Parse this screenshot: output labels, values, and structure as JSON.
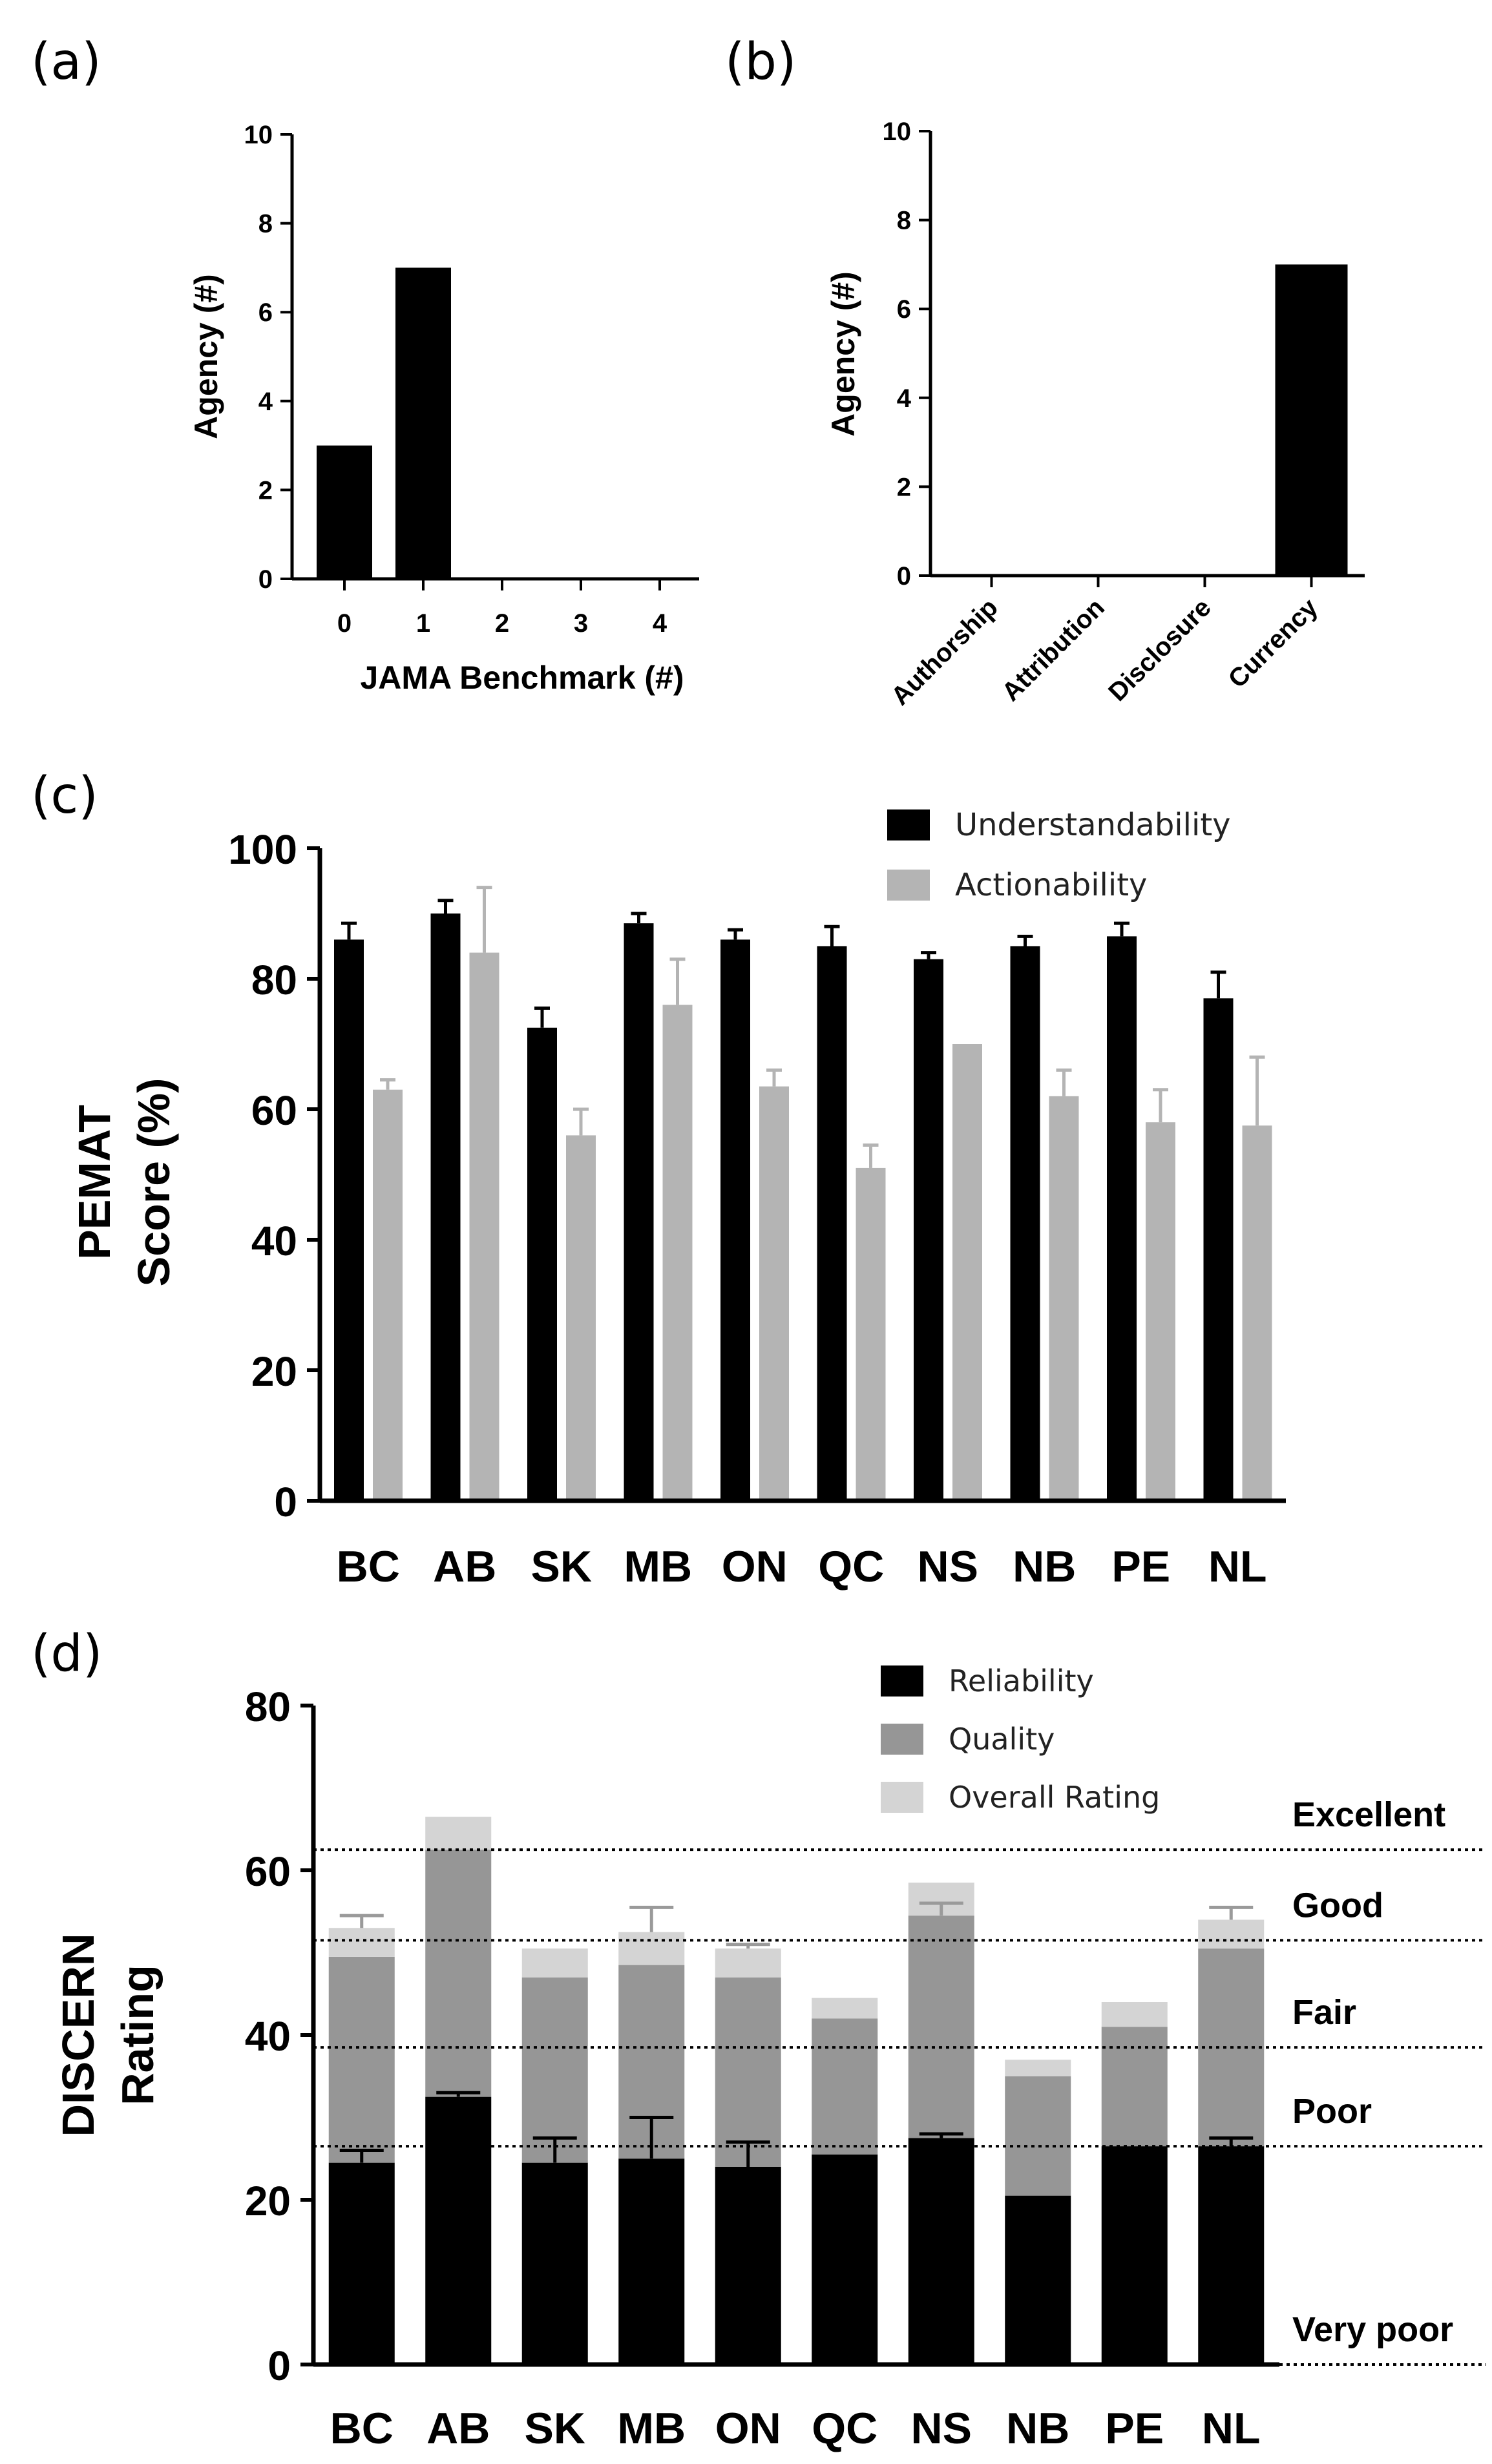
{
  "colors": {
    "black": "#000000",
    "gray": "#b4b4b4",
    "reliability": "#000000",
    "quality": "#969696",
    "overall": "#d4d4d4",
    "errorbar_gray": "#9a9a9a"
  },
  "chart_data": [
    {
      "id": "a",
      "panel_label": "(a)",
      "type": "bar",
      "categories": [
        "0",
        "1",
        "2",
        "3",
        "4"
      ],
      "values": [
        3,
        7,
        0,
        0,
        0
      ],
      "xlabel": "JAMA Benchmark (#)",
      "ylabel": "Agency (#)",
      "ylim": [
        0,
        10
      ],
      "yticks": [
        0,
        2,
        4,
        6,
        8,
        10
      ]
    },
    {
      "id": "b",
      "panel_label": "(b)",
      "type": "bar",
      "categories": [
        "Authorship",
        "Attribution",
        "Disclosure",
        "Currency"
      ],
      "values": [
        0,
        0,
        0,
        7
      ],
      "xlabel": "",
      "ylabel": "Agency (#)",
      "ylim": [
        0,
        10
      ],
      "yticks": [
        0,
        2,
        4,
        6,
        8,
        10
      ]
    },
    {
      "id": "c",
      "panel_label": "(c)",
      "type": "bar",
      "categories": [
        "BC",
        "AB",
        "SK",
        "MB",
        "ON",
        "QC",
        "NS",
        "NB",
        "PE",
        "NL"
      ],
      "series": [
        {
          "name": "Understandability",
          "values": [
            86,
            90,
            72.5,
            88.5,
            86,
            85,
            83,
            85,
            86.5,
            77
          ],
          "errors": [
            2.5,
            2,
            3,
            1.5,
            1.5,
            3,
            1,
            1.5,
            2,
            4
          ]
        },
        {
          "name": "Actionability",
          "values": [
            63,
            84,
            56,
            76,
            63.5,
            51,
            70,
            62,
            58,
            57.5
          ],
          "errors": [
            1.5,
            10,
            4,
            7,
            2.5,
            3.5,
            0,
            4,
            5,
            10.5
          ]
        }
      ],
      "ylabel": "PEMAT Score (%)",
      "ylabel_lines": [
        "PEMAT",
        "Score (%)"
      ],
      "ylim": [
        0,
        100
      ],
      "yticks": [
        0,
        20,
        40,
        60,
        80,
        100
      ],
      "legend": "top-right"
    },
    {
      "id": "d",
      "panel_label": "(d)",
      "type": "bar",
      "stacked": true,
      "categories": [
        "BC",
        "AB",
        "SK",
        "MB",
        "ON",
        "QC",
        "NS",
        "NB",
        "PE",
        "NL"
      ],
      "series": [
        {
          "name": "Reliability",
          "values": [
            24.5,
            32.5,
            24.5,
            25,
            24,
            25.5,
            27.5,
            20.5,
            26.5,
            26.5
          ],
          "errors": [
            1.5,
            0.5,
            3,
            5,
            3,
            0,
            0.5,
            0,
            0,
            1
          ]
        },
        {
          "name": "Quality",
          "values": [
            25,
            30,
            22.5,
            23.5,
            23,
            16.5,
            27,
            14.5,
            14.5,
            24
          ],
          "errors": [
            0,
            0,
            0,
            0,
            0,
            0,
            1.5,
            0,
            0,
            0
          ]
        },
        {
          "name": "Overall Rating",
          "values": [
            3.5,
            4,
            3.5,
            4,
            3.5,
            2.5,
            4,
            2,
            3,
            3.5
          ],
          "errors": [
            1.5,
            0,
            0,
            3,
            0.5,
            0,
            0,
            0,
            0,
            1.5
          ]
        }
      ],
      "ylabel": "DISCERN Rating",
      "ylabel_lines": [
        "DISCERN",
        "Rating"
      ],
      "ylim": [
        0,
        80
      ],
      "yticks": [
        0,
        20,
        40,
        60,
        80
      ],
      "legend": "top-right",
      "thresholds": [
        {
          "label": "Excellent",
          "value": 62.5
        },
        {
          "label": "Good",
          "value": 51.5
        },
        {
          "label": "Fair",
          "value": 38.5
        },
        {
          "label": "Poor",
          "value": 26.5
        },
        {
          "label": "Very poor",
          "value": 0
        }
      ]
    }
  ]
}
